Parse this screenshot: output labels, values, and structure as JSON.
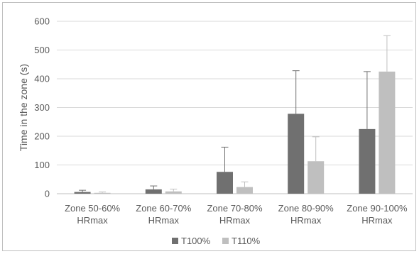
{
  "chart_data": {
    "type": "bar",
    "title": "",
    "xlabel": "",
    "ylabel": "Time in the zone (s)",
    "ylim": [
      0,
      600
    ],
    "yticks": [
      0,
      100,
      200,
      300,
      400,
      500,
      600
    ],
    "grid": "horizontal",
    "legend_position": "bottom",
    "categories": [
      [
        "Zone 50-60%",
        "HRmax"
      ],
      [
        "Zone 60-70%",
        "HRmax"
      ],
      [
        "Zone 70-80%",
        "HRmax"
      ],
      [
        "Zone 80-90%",
        "HRmax"
      ],
      [
        "Zone 90-100%",
        "HRmax"
      ]
    ],
    "series": [
      {
        "name": "T100%",
        "color": "#707070",
        "values": [
          6,
          15,
          76,
          278,
          225
        ],
        "error_plus": [
          6,
          12,
          86,
          150,
          200
        ]
      },
      {
        "name": "T110%",
        "color": "#bfbfbf",
        "values": [
          3,
          8,
          23,
          113,
          425
        ],
        "error_plus": [
          3,
          8,
          18,
          85,
          125
        ]
      }
    ]
  }
}
